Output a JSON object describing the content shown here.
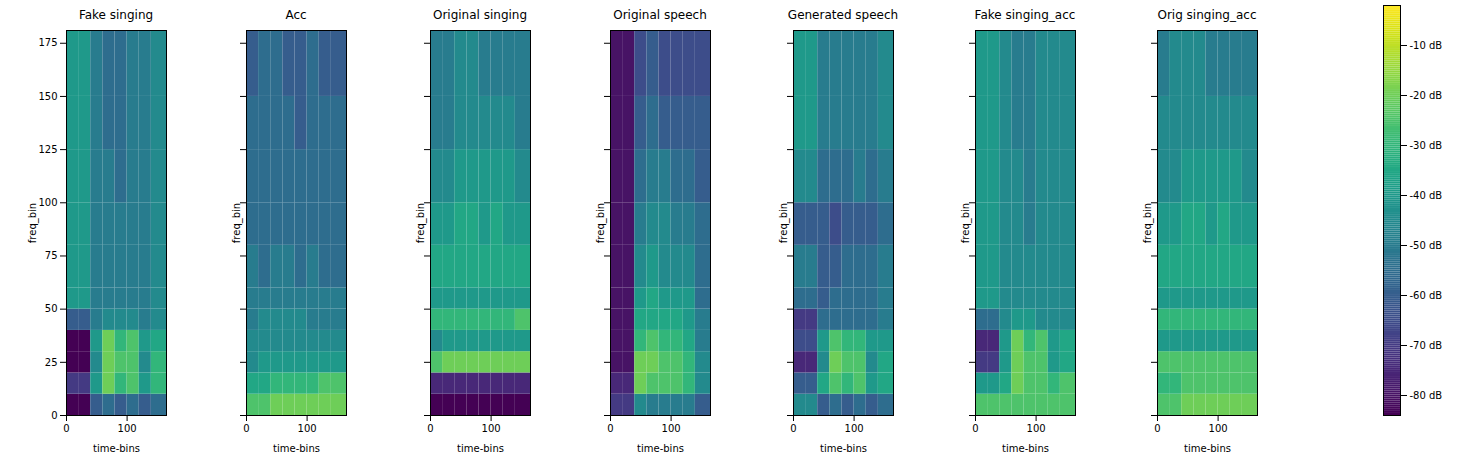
{
  "chart_data": {
    "type": "heatmap",
    "color": "viridis",
    "x_label": "time-bins",
    "y_label": "freq_bin",
    "xlim": [
      0,
      165
    ],
    "xticks": [
      0,
      100
    ],
    "ylim": [
      0,
      181
    ],
    "yticks": [
      0,
      25,
      50,
      75,
      100,
      125,
      150,
      175
    ],
    "x_edges": [
      0,
      20,
      40,
      60,
      80,
      100,
      120,
      140,
      165
    ],
    "y_edges": [
      0,
      10,
      20,
      30,
      40,
      50,
      60,
      80,
      100,
      125,
      150,
      181
    ],
    "colorbar_range": [
      -84,
      -2
    ],
    "colorbar_ticks": [
      {
        "value": -10,
        "label": "-10 dB"
      },
      {
        "value": -20,
        "label": "-20 dB"
      },
      {
        "value": -30,
        "label": "-30 dB"
      },
      {
        "value": -40,
        "label": "-40 dB"
      },
      {
        "value": -50,
        "label": "-50 dB"
      },
      {
        "value": -60,
        "label": "-60 dB"
      },
      {
        "value": -70,
        "label": "-70 dB"
      },
      {
        "value": -80,
        "label": "-80 dB"
      }
    ],
    "panels": [
      {
        "title": "Fake singing",
        "cells": [
          [
            -84,
            -84,
            -60,
            -55,
            -60,
            -55,
            -60,
            -55
          ],
          [
            -70,
            -70,
            -40,
            -20,
            -30,
            -25,
            -40,
            -30
          ],
          [
            -84,
            -84,
            -45,
            -20,
            -25,
            -25,
            -45,
            -30
          ],
          [
            -84,
            -84,
            -40,
            -20,
            -30,
            -25,
            -40,
            -35
          ],
          [
            -60,
            -60,
            -50,
            -45,
            -45,
            -45,
            -50,
            -45
          ],
          [
            -40,
            -40,
            -50,
            -50,
            -50,
            -50,
            -50,
            -45
          ],
          [
            -40,
            -40,
            -50,
            -50,
            -50,
            -50,
            -50,
            -45
          ],
          [
            -40,
            -40,
            -50,
            -50,
            -50,
            -50,
            -50,
            -45
          ],
          [
            -40,
            -40,
            -50,
            -50,
            -55,
            -50,
            -50,
            -45
          ],
          [
            -40,
            -40,
            -50,
            -55,
            -55,
            -50,
            -50,
            -45
          ],
          [
            -40,
            -40,
            -50,
            -55,
            -55,
            -50,
            -50,
            -45
          ]
        ]
      },
      {
        "title": "Acc",
        "tick_labels": "x",
        "cells": [
          [
            -25,
            -25,
            -20,
            -20,
            -20,
            -20,
            -20,
            -20
          ],
          [
            -35,
            -35,
            -30,
            -30,
            -30,
            -30,
            -25,
            -25
          ],
          [
            -45,
            -40,
            -40,
            -40,
            -40,
            -40,
            -40,
            -40
          ],
          [
            -45,
            -45,
            -45,
            -45,
            -45,
            -45,
            -45,
            -45
          ],
          [
            -50,
            -45,
            -45,
            -45,
            -45,
            -50,
            -50,
            -50
          ],
          [
            -50,
            -50,
            -50,
            -50,
            -50,
            -50,
            -50,
            -50
          ],
          [
            -50,
            -55,
            -50,
            -50,
            -55,
            -50,
            -55,
            -55
          ],
          [
            -55,
            -55,
            -55,
            -55,
            -55,
            -55,
            -55,
            -55
          ],
          [
            -55,
            -55,
            -55,
            -55,
            -55,
            -55,
            -55,
            -55
          ],
          [
            -55,
            -55,
            -55,
            -55,
            -60,
            -55,
            -55,
            -55
          ],
          [
            -60,
            -55,
            -55,
            -60,
            -60,
            -55,
            -60,
            -60
          ]
        ]
      },
      {
        "title": "Original singing",
        "tick_labels": "x",
        "cells": [
          [
            -84,
            -84,
            -84,
            -84,
            -84,
            -84,
            -84,
            -84
          ],
          [
            -75,
            -75,
            -75,
            -75,
            -75,
            -75,
            -75,
            -75
          ],
          [
            -25,
            -20,
            -20,
            -20,
            -20,
            -20,
            -20,
            -20
          ],
          [
            -45,
            -40,
            -40,
            -40,
            -40,
            -40,
            -40,
            -40
          ],
          [
            -30,
            -30,
            -30,
            -30,
            -30,
            -30,
            -30,
            -25
          ],
          [
            -40,
            -40,
            -40,
            -40,
            -40,
            -40,
            -40,
            -40
          ],
          [
            -35,
            -35,
            -35,
            -35,
            -35,
            -35,
            -35,
            -35
          ],
          [
            -40,
            -40,
            -35,
            -35,
            -40,
            -35,
            -40,
            -40
          ],
          [
            -45,
            -45,
            -40,
            -40,
            -40,
            -40,
            -40,
            -45
          ],
          [
            -50,
            -50,
            -45,
            -45,
            -45,
            -45,
            -45,
            -50
          ],
          [
            -50,
            -50,
            -45,
            -45,
            -50,
            -50,
            -50,
            -50
          ]
        ]
      },
      {
        "title": "Original speech",
        "tick_labels": "x",
        "cells": [
          [
            -70,
            -70,
            -45,
            -50,
            -50,
            -50,
            -50,
            -60
          ],
          [
            -75,
            -75,
            -20,
            -25,
            -25,
            -25,
            -30,
            -45
          ],
          [
            -80,
            -80,
            -20,
            -20,
            -25,
            -25,
            -30,
            -45
          ],
          [
            -80,
            -80,
            -30,
            -25,
            -30,
            -30,
            -35,
            -50
          ],
          [
            -80,
            -80,
            -35,
            -35,
            -35,
            -35,
            -40,
            -50
          ],
          [
            -80,
            -80,
            -40,
            -35,
            -40,
            -40,
            -40,
            -55
          ],
          [
            -80,
            -80,
            -45,
            -40,
            -45,
            -45,
            -45,
            -55
          ],
          [
            -80,
            -80,
            -50,
            -45,
            -45,
            -50,
            -50,
            -55
          ],
          [
            -80,
            -80,
            -55,
            -50,
            -50,
            -55,
            -55,
            -60
          ],
          [
            -80,
            -80,
            -60,
            -55,
            -60,
            -60,
            -60,
            -60
          ],
          [
            -80,
            -80,
            -65,
            -60,
            -65,
            -65,
            -65,
            -65
          ]
        ]
      },
      {
        "title": "Generated speech",
        "tick_labels": "x",
        "cells": [
          [
            -45,
            -45,
            -60,
            -55,
            -60,
            -55,
            -60,
            -55
          ],
          [
            -60,
            -60,
            -35,
            -25,
            -30,
            -25,
            -40,
            -35
          ],
          [
            -75,
            -75,
            -45,
            -20,
            -25,
            -25,
            -45,
            -35
          ],
          [
            -65,
            -65,
            -40,
            -25,
            -30,
            -30,
            -40,
            -40
          ],
          [
            -70,
            -70,
            -55,
            -55,
            -55,
            -55,
            -55,
            -50
          ],
          [
            -55,
            -55,
            -60,
            -55,
            -55,
            -55,
            -55,
            -50
          ],
          [
            -50,
            -50,
            -60,
            -60,
            -55,
            -55,
            -55,
            -50
          ],
          [
            -60,
            -60,
            -60,
            -65,
            -60,
            -60,
            -60,
            -55
          ],
          [
            -45,
            -45,
            -55,
            -55,
            -55,
            -50,
            -55,
            -50
          ],
          [
            -40,
            -40,
            -50,
            -50,
            -50,
            -50,
            -50,
            -45
          ],
          [
            -40,
            -40,
            -50,
            -50,
            -50,
            -50,
            -50,
            -45
          ]
        ]
      },
      {
        "title": "Fake singing_acc",
        "tick_labels": "x",
        "cells": [
          [
            -25,
            -25,
            -25,
            -25,
            -25,
            -25,
            -25,
            -25
          ],
          [
            -40,
            -40,
            -35,
            -20,
            -25,
            -25,
            -30,
            -25
          ],
          [
            -70,
            -70,
            -40,
            -20,
            -25,
            -25,
            -40,
            -35
          ],
          [
            -75,
            -75,
            -40,
            -20,
            -30,
            -25,
            -40,
            -35
          ],
          [
            -55,
            -55,
            -45,
            -40,
            -40,
            -45,
            -45,
            -45
          ],
          [
            -40,
            -40,
            -45,
            -45,
            -45,
            -45,
            -45,
            -45
          ],
          [
            -40,
            -40,
            -45,
            -45,
            -45,
            -45,
            -45,
            -45
          ],
          [
            -40,
            -40,
            -45,
            -45,
            -50,
            -45,
            -45,
            -45
          ],
          [
            -40,
            -40,
            -45,
            -45,
            -50,
            -45,
            -45,
            -45
          ],
          [
            -40,
            -40,
            -45,
            -50,
            -50,
            -45,
            -45,
            -45
          ],
          [
            -40,
            -40,
            -45,
            -50,
            -50,
            -45,
            -45,
            -45
          ]
        ]
      },
      {
        "title": "Orig singing_acc",
        "tick_labels": "x",
        "cells": [
          [
            -25,
            -25,
            -20,
            -20,
            -20,
            -20,
            -20,
            -20
          ],
          [
            -30,
            -30,
            -25,
            -25,
            -25,
            -25,
            -25,
            -25
          ],
          [
            -25,
            -25,
            -25,
            -25,
            -25,
            -25,
            -25,
            -25
          ],
          [
            -40,
            -40,
            -40,
            -40,
            -40,
            -40,
            -40,
            -40
          ],
          [
            -30,
            -30,
            -30,
            -30,
            -30,
            -30,
            -30,
            -30
          ],
          [
            -40,
            -40,
            -40,
            -40,
            -40,
            -40,
            -40,
            -40
          ],
          [
            -35,
            -35,
            -35,
            -35,
            -35,
            -35,
            -35,
            -35
          ],
          [
            -40,
            -40,
            -35,
            -35,
            -40,
            -35,
            -40,
            -40
          ],
          [
            -45,
            -45,
            -40,
            -40,
            -40,
            -40,
            -40,
            -45
          ],
          [
            -45,
            -45,
            -45,
            -45,
            -45,
            -45,
            -45,
            -45
          ],
          [
            -50,
            -45,
            -45,
            -45,
            -50,
            -50,
            -50,
            -50
          ]
        ]
      }
    ]
  }
}
